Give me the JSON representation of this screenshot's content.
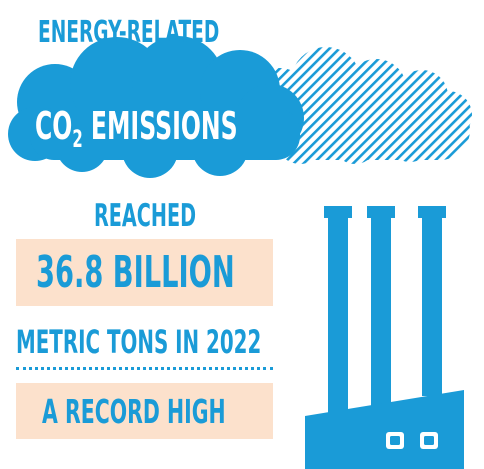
{
  "headline": "ENERGY-RELATED",
  "emissions": {
    "prefix": "CO",
    "subscript": "2",
    "label": "EMISSIONS"
  },
  "reached": "REACHED",
  "value": "36.8 BILLION",
  "metric": "METRIC TONS IN 2022",
  "record": "A RECORD HIGH",
  "icons": [
    "cloud-icon",
    "hatched-cloud-icon",
    "factory-icon"
  ],
  "colors": {
    "blue": "#1a9bd7",
    "peach": "#fce1cc",
    "white": "#ffffff"
  }
}
